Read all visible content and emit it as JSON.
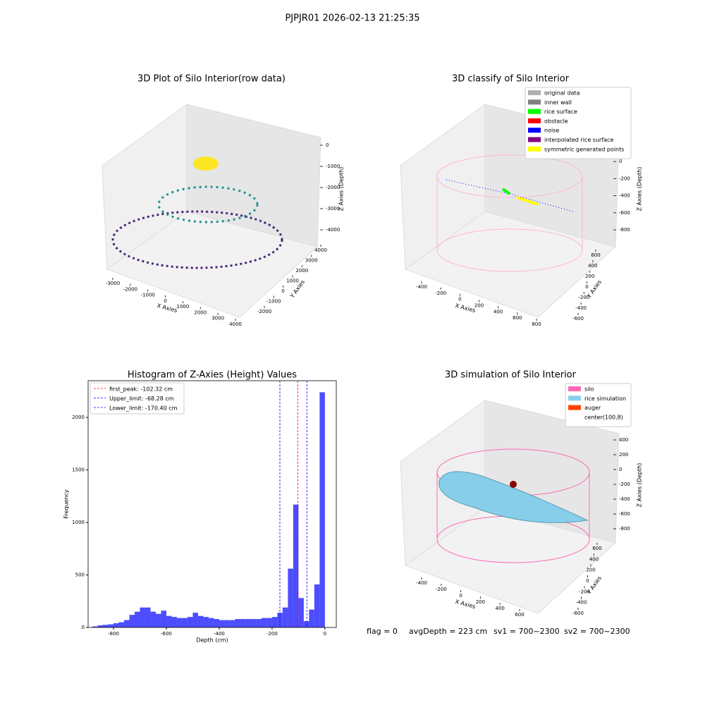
{
  "title": "PJPJR01 2026-02-13 21:25:35",
  "chart_data": [
    {
      "type": "scatter3d",
      "title": "3D Plot of Silo Interior(row data)",
      "xlabel": "X Axies",
      "ylabel": "Y Axies",
      "zlabel": "Z Axies (Depth)",
      "xticks": [
        -3000,
        -2000,
        -1000,
        0,
        1000,
        2000,
        3000,
        4000
      ],
      "yticks": [
        -2000,
        -1000,
        0,
        1000,
        2000,
        3000,
        4000
      ],
      "zticks": [
        0,
        -1000,
        -2000,
        -3000,
        -4000
      ]
    },
    {
      "type": "scatter3d",
      "title": "3D classify of Silo Interior",
      "xlabel": "X Axies",
      "ylabel": "Y Axies",
      "zlabel": "Z Axies (Depth)",
      "xticks": [
        -400,
        -200,
        0,
        200,
        400,
        600,
        800
      ],
      "yticks": [
        -600,
        -400,
        -200,
        0,
        200,
        400,
        600
      ],
      "zticks": [
        200,
        0,
        -200,
        -400,
        -600,
        -800
      ],
      "series": [
        {
          "name": "original data",
          "color": "#b0b0b0"
        },
        {
          "name": "inner wall",
          "color": "#808080"
        },
        {
          "name": "rice surface",
          "color": "#00ff00"
        },
        {
          "name": "obstacle",
          "color": "#ff0000"
        },
        {
          "name": "noise",
          "color": "#0000ff"
        },
        {
          "name": "interpolated rice surface",
          "color": "#800080"
        },
        {
          "name": "symmetric generated points",
          "color": "#ffff00"
        }
      ]
    },
    {
      "type": "histogram",
      "title": "Histogram of Z-Axies (Height) Values",
      "xlabel": "Depth (cm)",
      "ylabel": "Frequency",
      "color": "#4d4dff",
      "bins": [
        -880,
        -860,
        -840,
        -820,
        -800,
        -780,
        -760,
        -740,
        -720,
        -700,
        -680,
        -660,
        -640,
        -620,
        -600,
        -580,
        -560,
        -540,
        -520,
        -500,
        -480,
        -460,
        -440,
        -420,
        -400,
        -380,
        -360,
        -340,
        -320,
        -300,
        -280,
        -260,
        -240,
        -220,
        -200,
        -180,
        -160,
        -140,
        -120,
        -100,
        -80,
        -60,
        -40,
        -20,
        0
      ],
      "values": [
        10,
        20,
        25,
        30,
        40,
        50,
        70,
        120,
        150,
        190,
        190,
        150,
        130,
        160,
        110,
        100,
        90,
        90,
        100,
        140,
        110,
        100,
        90,
        80,
        70,
        70,
        70,
        80,
        80,
        80,
        80,
        80,
        90,
        90,
        100,
        140,
        190,
        560,
        1170,
        280,
        60,
        170,
        410,
        2240
      ],
      "xlim": [
        -896,
        43
      ],
      "ylim": [
        0,
        2350
      ],
      "xticks": [
        -800,
        -600,
        -400,
        -200,
        0
      ],
      "yticks": [
        0,
        500,
        1000,
        1500,
        2000
      ],
      "vlines": [
        {
          "name": "first_peak: -102.32 cm",
          "value": -102.32,
          "color": "#ff0000"
        },
        {
          "name": "Upper_limit: -68.28 cm",
          "value": -68.28,
          "color": "#0000ff"
        },
        {
          "name": "Lower_limit: -170.40 cm",
          "value": -170.4,
          "color": "#0000ff"
        }
      ]
    },
    {
      "type": "surface3d",
      "title": "3D simulation of Silo Interior",
      "xlabel": "X Axies",
      "ylabel": "Y Axies",
      "zlabel": "Z Axies (Depth)",
      "xticks": [
        -400,
        -200,
        0,
        200,
        400,
        600
      ],
      "yticks": [
        -600,
        -400,
        -200,
        0,
        200,
        400,
        600
      ],
      "zticks": [
        400,
        200,
        0,
        -200,
        -400,
        -600,
        -800
      ],
      "series": [
        {
          "name": "silo",
          "color": "#ff69b4"
        },
        {
          "name": "rice simulation",
          "color": "#87ceeb"
        },
        {
          "name": "auger",
          "color": "#ff4500"
        },
        {
          "name": "center(100,8)",
          "color": "#ffffff"
        }
      ]
    }
  ],
  "status": [
    "flag = 0",
    "avgDepth = 223 cm",
    "sv1 = 700~2300",
    "sv2 = 700~2300"
  ]
}
